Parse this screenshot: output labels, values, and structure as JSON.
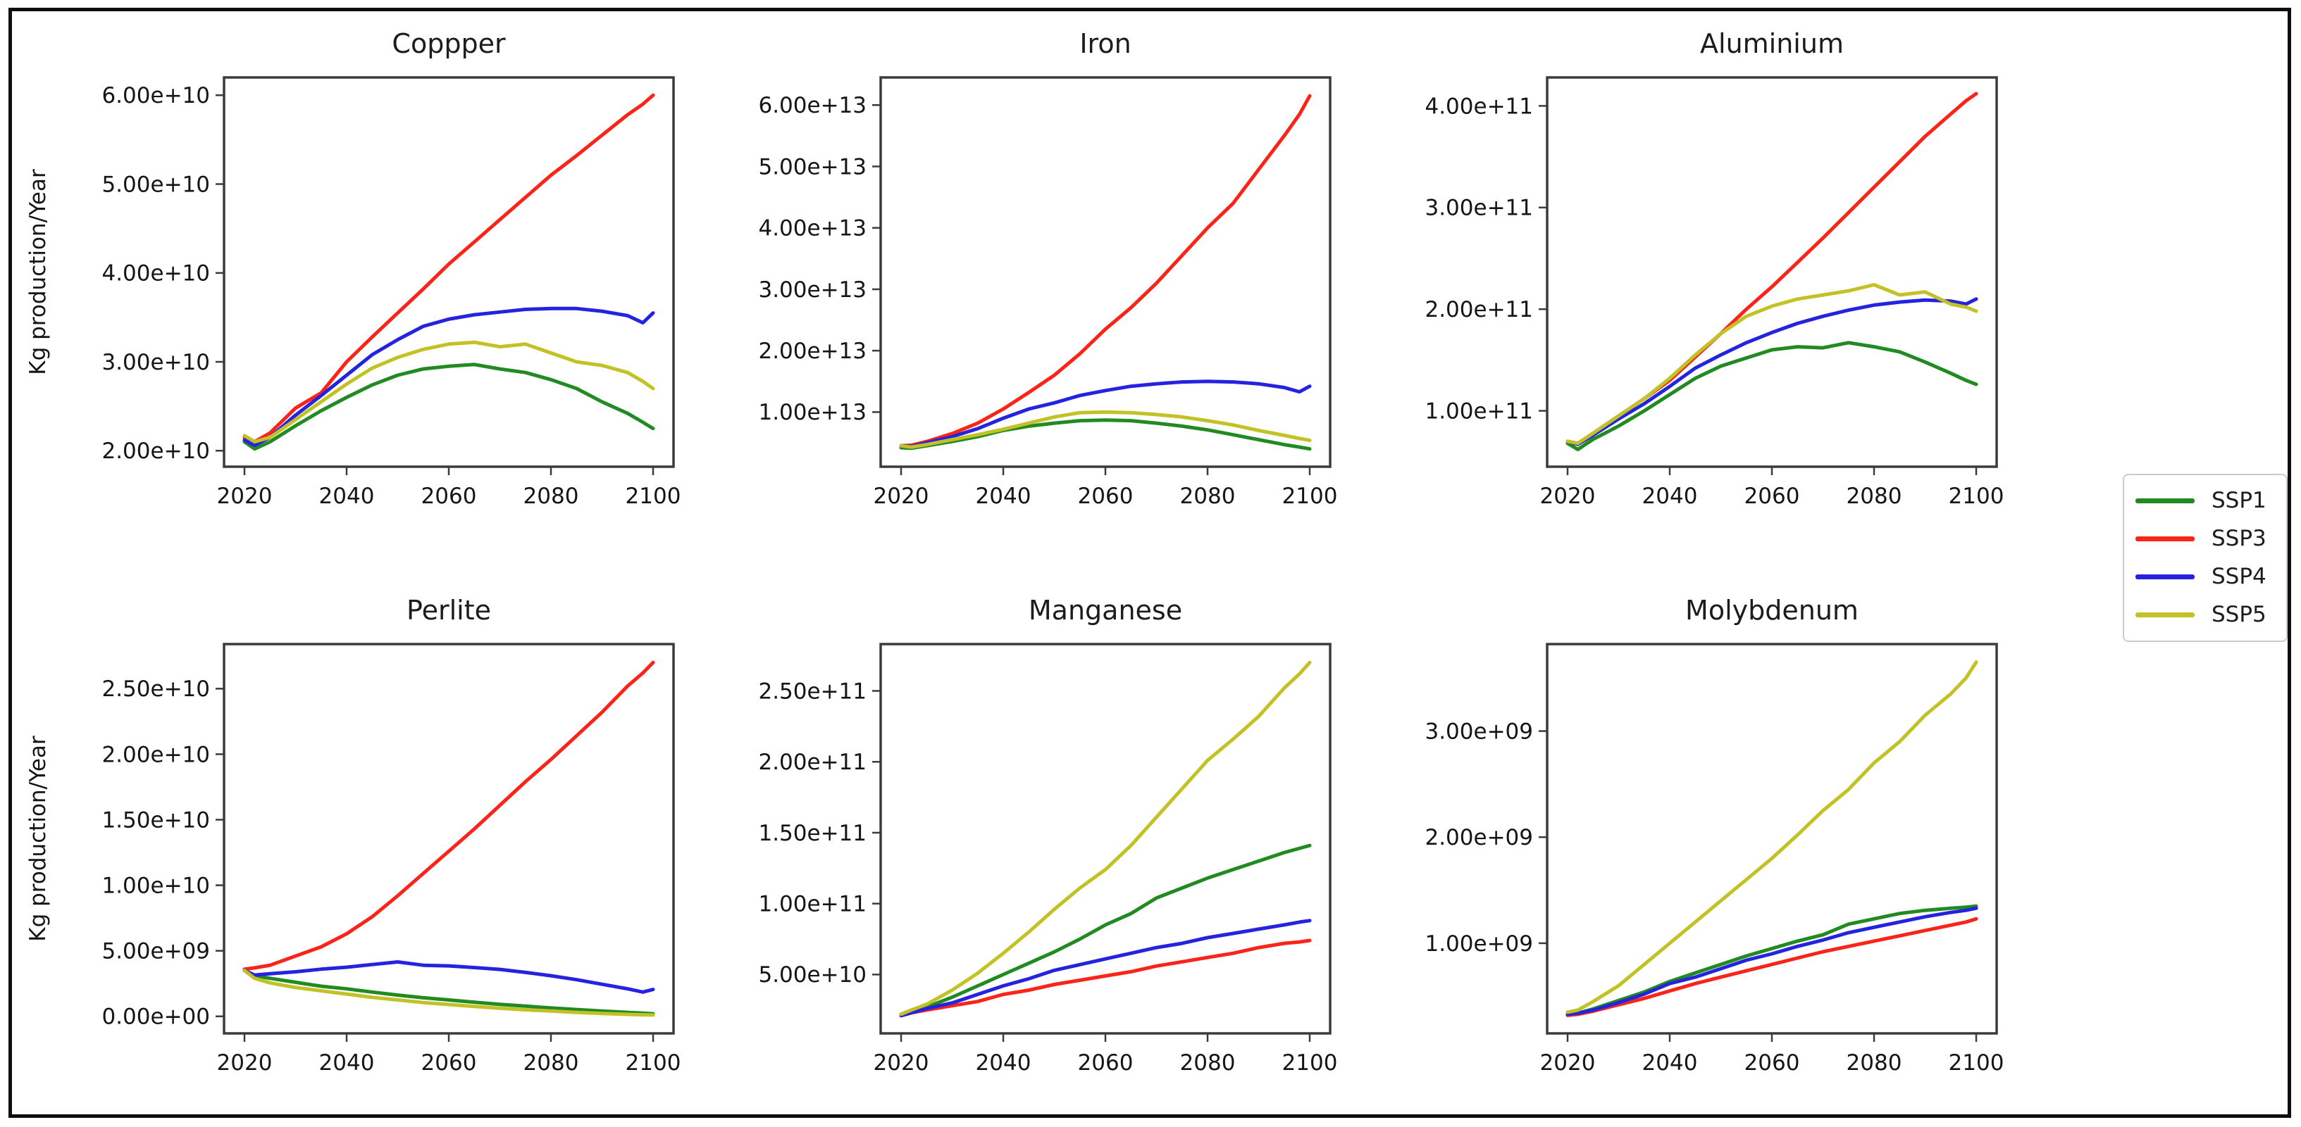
{
  "figure": {
    "ylabel": "Kg production/Year",
    "xticks": [
      2020,
      2040,
      2060,
      2080,
      2100
    ],
    "years": [
      2020,
      2022,
      2025,
      2030,
      2035,
      2040,
      2045,
      2050,
      2055,
      2060,
      2065,
      2070,
      2075,
      2080,
      2085,
      2090,
      2095,
      2098,
      2100
    ],
    "frame_color": "#3b3b3b",
    "background": "#ffffff"
  },
  "legend": {
    "entries": [
      {
        "label": "SSP1",
        "color": "#218a21"
      },
      {
        "label": "SSP3",
        "color": "#fb2418"
      },
      {
        "label": "SSP4",
        "color": "#2424e0"
      },
      {
        "label": "SSP5",
        "color": "#c2c226"
      }
    ]
  },
  "chart_data": [
    {
      "title": "Coppper",
      "type": "line",
      "grid": false,
      "xlabel": "",
      "ylabel": "Kg production/Year",
      "xlim": [
        2016,
        2104
      ],
      "ylim": [
        18200000000.0,
        62000000000.0
      ],
      "yticks": {
        "values": [
          20000000000.0,
          30000000000.0,
          40000000000.0,
          50000000000.0,
          60000000000.0
        ],
        "labels": [
          "2.00e+10",
          "3.00e+10",
          "4.00e+10",
          "5.00e+10",
          "6.00e+10"
        ]
      },
      "series": [
        {
          "name": "SSP1",
          "color": "#218a21",
          "values": [
            21000000000.0,
            20200000000.0,
            21000000000.0,
            22800000000.0,
            24500000000.0,
            26000000000.0,
            27400000000.0,
            28500000000.0,
            29200000000.0,
            29500000000.0,
            29700000000.0,
            29200000000.0,
            28800000000.0,
            28000000000.0,
            27000000000.0,
            25500000000.0,
            24200000000.0,
            23200000000.0,
            22500000000.0
          ]
        },
        {
          "name": "SSP3",
          "color": "#fb2418",
          "values": [
            21500000000.0,
            21000000000.0,
            22000000000.0,
            24800000000.0,
            26500000000.0,
            30000000000.0,
            32800000000.0,
            35500000000.0,
            38200000000.0,
            41000000000.0,
            43500000000.0,
            46000000000.0,
            48500000000.0,
            51000000000.0,
            53200000000.0,
            55500000000.0,
            57800000000.0,
            59000000000.0,
            60000000000.0
          ]
        },
        {
          "name": "SSP4",
          "color": "#2424e0",
          "values": [
            21200000000.0,
            20600000000.0,
            21500000000.0,
            24000000000.0,
            26200000000.0,
            28500000000.0,
            30800000000.0,
            32500000000.0,
            34000000000.0,
            34800000000.0,
            35300000000.0,
            35600000000.0,
            35900000000.0,
            36000000000.0,
            36000000000.0,
            35700000000.0,
            35200000000.0,
            34400000000.0,
            35500000000.0
          ]
        },
        {
          "name": "SSP5",
          "color": "#c2c226",
          "values": [
            21700000000.0,
            21000000000.0,
            21500000000.0,
            23500000000.0,
            25500000000.0,
            27500000000.0,
            29300000000.0,
            30500000000.0,
            31400000000.0,
            32000000000.0,
            32200000000.0,
            31700000000.0,
            32000000000.0,
            31000000000.0,
            30000000000.0,
            29600000000.0,
            28800000000.0,
            27800000000.0,
            27000000000.0
          ]
        }
      ]
    },
    {
      "title": "Iron",
      "type": "line",
      "grid": false,
      "xlabel": "",
      "ylabel": "",
      "xlim": [
        2016,
        2104
      ],
      "ylim": [
        1100000000000.0,
        64500000000000.0
      ],
      "yticks": {
        "values": [
          10000000000000.0,
          20000000000000.0,
          30000000000000.0,
          40000000000000.0,
          50000000000000.0,
          60000000000000.0
        ],
        "labels": [
          "1.00e+13",
          "2.00e+13",
          "3.00e+13",
          "4.00e+13",
          "5.00e+13",
          "6.00e+13"
        ]
      },
      "series": [
        {
          "name": "SSP1",
          "color": "#218a21",
          "values": [
            4200000000000.0,
            4100000000000.0,
            4500000000000.0,
            5200000000000.0,
            6000000000000.0,
            7000000000000.0,
            7700000000000.0,
            8200000000000.0,
            8600000000000.0,
            8700000000000.0,
            8600000000000.0,
            8200000000000.0,
            7700000000000.0,
            7100000000000.0,
            6300000000000.0,
            5500000000000.0,
            4700000000000.0,
            4300000000000.0,
            4000000000000.0
          ]
        },
        {
          "name": "SSP3",
          "color": "#fb2418",
          "values": [
            4500000000000.0,
            4600000000000.0,
            5200000000000.0,
            6500000000000.0,
            8200000000000.0,
            10500000000000.0,
            13200000000000.0,
            16000000000000.0,
            19500000000000.0,
            23500000000000.0,
            27000000000000.0,
            31000000000000.0,
            35500000000000.0,
            40000000000000.0,
            44000000000000.0,
            49500000000000.0,
            55000000000000.0,
            58500000000000.0,
            61500000000000.0
          ]
        },
        {
          "name": "SSP4",
          "color": "#2424e0",
          "values": [
            4500000000000.0,
            4400000000000.0,
            5000000000000.0,
            6000000000000.0,
            7300000000000.0,
            9000000000000.0,
            10500000000000.0,
            11500000000000.0,
            12700000000000.0,
            13500000000000.0,
            14200000000000.0,
            14600000000000.0,
            14900000000000.0,
            15000000000000.0,
            14900000000000.0,
            14600000000000.0,
            14000000000000.0,
            13300000000000.0,
            14200000000000.0
          ]
        },
        {
          "name": "SSP5",
          "color": "#c2c226",
          "values": [
            4500000000000.0,
            4300000000000.0,
            4700000000000.0,
            5500000000000.0,
            6300000000000.0,
            7200000000000.0,
            8200000000000.0,
            9200000000000.0,
            9900000000000.0,
            10000000000000.0,
            9900000000000.0,
            9600000000000.0,
            9200000000000.0,
            8600000000000.0,
            7900000000000.0,
            7000000000000.0,
            6200000000000.0,
            5700000000000.0,
            5400000000000.0
          ]
        }
      ]
    },
    {
      "title": "Aluminium",
      "type": "line",
      "grid": false,
      "xlabel": "",
      "ylabel": "",
      "xlim": [
        2016,
        2104
      ],
      "ylim": [
        45000000000.0,
        428000000000.0
      ],
      "yticks": {
        "values": [
          100000000000.0,
          200000000000.0,
          300000000000.0,
          400000000000.0
        ],
        "labels": [
          "1.00e+11",
          "2.00e+11",
          "3.00e+11",
          "4.00e+11"
        ]
      },
      "series": [
        {
          "name": "SSP1",
          "color": "#218a21",
          "values": [
            68000000000.0,
            62000000000.0,
            72000000000.0,
            85000000000.0,
            100000000000.0,
            116000000000.0,
            132000000000.0,
            144000000000.0,
            152000000000.0,
            160000000000.0,
            163000000000.0,
            162000000000.0,
            167000000000.0,
            163000000000.0,
            158000000000.0,
            148000000000.0,
            137000000000.0,
            130000000000.0,
            126000000000.0
          ]
        },
        {
          "name": "SSP3",
          "color": "#fb2418",
          "values": [
            70000000000.0,
            68000000000.0,
            78000000000.0,
            95000000000.0,
            112000000000.0,
            130000000000.0,
            153000000000.0,
            176000000000.0,
            200000000000.0,
            222000000000.0,
            246000000000.0,
            270000000000.0,
            295000000000.0,
            320000000000.0,
            345000000000.0,
            370000000000.0,
            392000000000.0,
            405000000000.0,
            412000000000.0
          ]
        },
        {
          "name": "SSP4",
          "color": "#2424e0",
          "values": [
            70000000000.0,
            67000000000.0,
            76000000000.0,
            92000000000.0,
            107000000000.0,
            124000000000.0,
            142000000000.0,
            155000000000.0,
            167000000000.0,
            177000000000.0,
            186000000000.0,
            193000000000.0,
            199000000000.0,
            204000000000.0,
            207000000000.0,
            209000000000.0,
            208000000000.0,
            205000000000.0,
            210000000000.0
          ]
        },
        {
          "name": "SSP5",
          "color": "#c2c226",
          "values": [
            70000000000.0,
            68000000000.0,
            78000000000.0,
            95000000000.0,
            112000000000.0,
            132000000000.0,
            155000000000.0,
            176000000000.0,
            193000000000.0,
            203000000000.0,
            210000000000.0,
            214000000000.0,
            218000000000.0,
            224000000000.0,
            214000000000.0,
            217000000000.0,
            205000000000.0,
            202000000000.0,
            198000000000.0
          ]
        }
      ]
    },
    {
      "title": "Perlite",
      "type": "line",
      "grid": false,
      "xlabel": "",
      "ylabel": "Kg production/Year",
      "xlim": [
        2016,
        2104
      ],
      "ylim": [
        -1300000000.0,
        28400000000.0
      ],
      "yticks": {
        "values": [
          0,
          5000000000.0,
          10000000000.0,
          15000000000.0,
          20000000000.0,
          25000000000.0
        ],
        "labels": [
          "0.00e+00",
          "5.00e+09",
          "1.00e+10",
          "1.50e+10",
          "2.00e+10",
          "2.50e+10"
        ]
      },
      "series": [
        {
          "name": "SSP1",
          "color": "#218a21",
          "values": [
            3500000000.0,
            3100000000.0,
            2900000000.0,
            2600000000.0,
            2300000000.0,
            2100000000.0,
            1850000000.0,
            1620000000.0,
            1420000000.0,
            1250000000.0,
            1080000000.0,
            920000000.0,
            780000000.0,
            640000000.0,
            520000000.0,
            400000000.0,
            300000000.0,
            240000000.0,
            200000000.0
          ]
        },
        {
          "name": "SSP3",
          "color": "#fb2418",
          "values": [
            3600000000.0,
            3700000000.0,
            3900000000.0,
            4600000000.0,
            5300000000.0,
            6300000000.0,
            7600000000.0,
            9200000000.0,
            10900000000.0,
            12600000000.0,
            14300000000.0,
            16100000000.0,
            17900000000.0,
            19600000000.0,
            21400000000.0,
            23200000000.0,
            25200000000.0,
            26200000000.0,
            27000000000.0
          ]
        },
        {
          "name": "SSP4",
          "color": "#2424e0",
          "values": [
            3500000000.0,
            3150000000.0,
            3250000000.0,
            3400000000.0,
            3600000000.0,
            3750000000.0,
            3950000000.0,
            4150000000.0,
            3900000000.0,
            3850000000.0,
            3720000000.0,
            3580000000.0,
            3350000000.0,
            3100000000.0,
            2800000000.0,
            2450000000.0,
            2100000000.0,
            1850000000.0,
            2050000000.0
          ]
        },
        {
          "name": "SSP5",
          "color": "#c2c226",
          "values": [
            3500000000.0,
            2900000000.0,
            2550000000.0,
            2200000000.0,
            1950000000.0,
            1700000000.0,
            1450000000.0,
            1250000000.0,
            1050000000.0,
            900000000.0,
            750000000.0,
            620000000.0,
            500000000.0,
            400000000.0,
            300000000.0,
            220000000.0,
            150000000.0,
            120000000.0,
            100000000.0
          ]
        }
      ]
    },
    {
      "title": "Manganese",
      "type": "line",
      "grid": false,
      "xlabel": "",
      "ylabel": "",
      "xlim": [
        2016,
        2104
      ],
      "ylim": [
        8500000000.0,
        283000000000.0
      ],
      "yticks": {
        "values": [
          50000000000.0,
          100000000000.0,
          150000000000.0,
          200000000000.0,
          250000000000.0
        ],
        "labels": [
          "5.00e+10",
          "1.00e+11",
          "1.50e+11",
          "2.00e+11",
          "2.50e+11"
        ]
      },
      "series": [
        {
          "name": "SSP1",
          "color": "#218a21",
          "values": [
            22000000000.0,
            24000000000.0,
            27000000000.0,
            34000000000.0,
            42000000000.0,
            50000000000.0,
            58000000000.0,
            66000000000.0,
            75000000000.0,
            85000000000.0,
            93000000000.0,
            104000000000.0,
            111000000000.0,
            118000000000.0,
            124000000000.0,
            130000000000.0,
            136000000000.0,
            139000000000.0,
            141000000000.0
          ]
        },
        {
          "name": "SSP3",
          "color": "#fb2418",
          "values": [
            21000000000.0,
            23000000000.0,
            25000000000.0,
            28000000000.0,
            31000000000.0,
            36000000000.0,
            39000000000.0,
            43000000000.0,
            46000000000.0,
            49000000000.0,
            52000000000.0,
            56000000000.0,
            59000000000.0,
            62000000000.0,
            65000000000.0,
            69000000000.0,
            72000000000.0,
            73000000000.0,
            74000000000.0
          ]
        },
        {
          "name": "SSP4",
          "color": "#2424e0",
          "values": [
            21000000000.0,
            23000000000.0,
            26000000000.0,
            30000000000.0,
            36000000000.0,
            42000000000.0,
            47000000000.0,
            53000000000.0,
            57000000000.0,
            61000000000.0,
            65000000000.0,
            69000000000.0,
            72000000000.0,
            76000000000.0,
            79000000000.0,
            82000000000.0,
            85000000000.0,
            87000000000.0,
            88000000000.0
          ]
        },
        {
          "name": "SSP5",
          "color": "#c2c226",
          "values": [
            22000000000.0,
            25000000000.0,
            29000000000.0,
            39000000000.0,
            51000000000.0,
            65000000000.0,
            80000000000.0,
            96000000000.0,
            111000000000.0,
            124000000000.0,
            141000000000.0,
            161000000000.0,
            181000000000.0,
            201000000000.0,
            216000000000.0,
            232000000000.0,
            252000000000.0,
            262000000000.0,
            270000000000.0
          ]
        }
      ]
    },
    {
      "title": "Molybdenum",
      "type": "line",
      "grid": false,
      "xlabel": "",
      "ylabel": "",
      "xlim": [
        2016,
        2104
      ],
      "ylim": [
        150000000.0,
        3820000000.0
      ],
      "yticks": {
        "values": [
          1000000000.0,
          2000000000.0,
          3000000000.0
        ],
        "labels": [
          "1.00e+09",
          "2.00e+09",
          "3.00e+09"
        ]
      },
      "series": [
        {
          "name": "SSP1",
          "color": "#218a21",
          "values": [
            330000000.0,
            340000000.0,
            380000000.0,
            460000000.0,
            540000000.0,
            640000000.0,
            720000000.0,
            800000000.0,
            880000000.0,
            950000000.0,
            1020000000.0,
            1080000000.0,
            1180000000.0,
            1230000000.0,
            1280000000.0,
            1310000000.0,
            1330000000.0,
            1340000000.0,
            1350000000.0
          ]
        },
        {
          "name": "SSP3",
          "color": "#fb2418",
          "values": [
            320000000.0,
            330000000.0,
            360000000.0,
            420000000.0,
            480000000.0,
            550000000.0,
            620000000.0,
            680000000.0,
            740000000.0,
            800000000.0,
            860000000.0,
            920000000.0,
            970000000.0,
            1020000000.0,
            1070000000.0,
            1120000000.0,
            1170000000.0,
            1200000000.0,
            1230000000.0
          ]
        },
        {
          "name": "SSP4",
          "color": "#2424e0",
          "values": [
            330000000.0,
            340000000.0,
            370000000.0,
            440000000.0,
            520000000.0,
            620000000.0,
            680000000.0,
            760000000.0,
            840000000.0,
            900000000.0,
            970000000.0,
            1030000000.0,
            1100000000.0,
            1150000000.0,
            1200000000.0,
            1250000000.0,
            1290000000.0,
            1310000000.0,
            1330000000.0
          ]
        },
        {
          "name": "SSP5",
          "color": "#c2c226",
          "values": [
            350000000.0,
            370000000.0,
            450000000.0,
            600000000.0,
            800000000.0,
            1000000000.0,
            1200000000.0,
            1400000000.0,
            1600000000.0,
            1800000000.0,
            2020000000.0,
            2250000000.0,
            2450000000.0,
            2700000000.0,
            2900000000.0,
            3150000000.0,
            3350000000.0,
            3500000000.0,
            3650000000.0
          ]
        }
      ]
    }
  ]
}
